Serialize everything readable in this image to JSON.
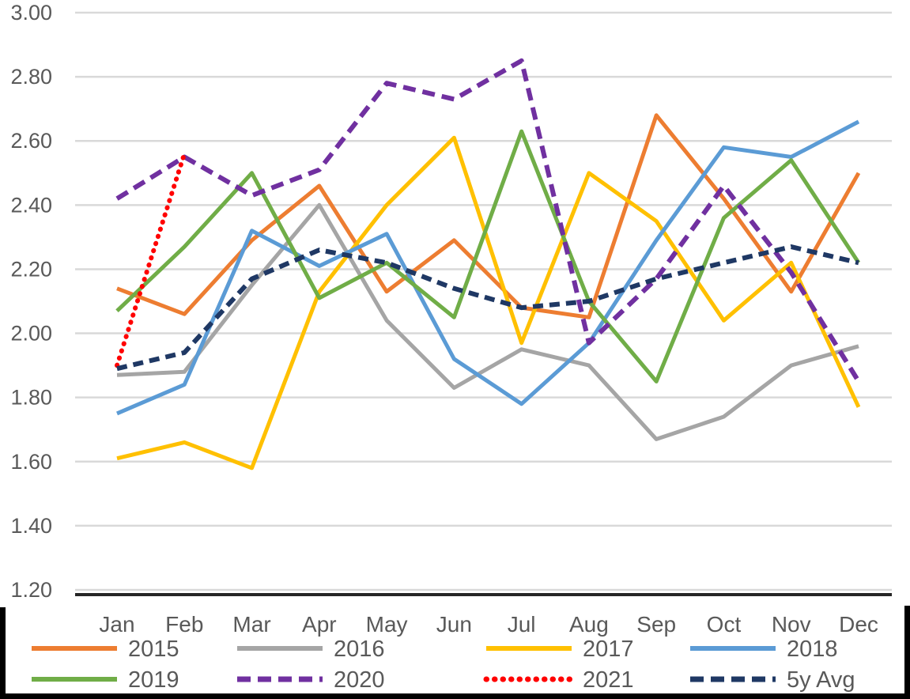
{
  "chart_data": {
    "type": "line",
    "title": "",
    "xlabel": "",
    "ylabel": "",
    "categories": [
      "Jan",
      "Feb",
      "Mar",
      "Apr",
      "May",
      "Jun",
      "Jul",
      "Aug",
      "Sep",
      "Oct",
      "Nov",
      "Dec"
    ],
    "y_ticks": [
      "3.00",
      "2.80",
      "2.60",
      "2.40",
      "2.20",
      "2.00",
      "1.80",
      "1.60",
      "1.40",
      "1.20"
    ],
    "ylim": [
      1.2,
      3.0
    ],
    "grid": "horizontal",
    "legend_position": "bottom",
    "series": [
      {
        "name": "2015",
        "color": "#ED7D31",
        "style": "solid",
        "values": [
          2.14,
          2.06,
          2.29,
          2.46,
          2.13,
          2.29,
          2.08,
          2.05,
          2.68,
          2.42,
          2.13,
          2.5
        ]
      },
      {
        "name": "2016",
        "color": "#A5A5A5",
        "style": "solid",
        "values": [
          1.87,
          1.88,
          2.15,
          2.4,
          2.04,
          1.83,
          1.95,
          1.9,
          1.67,
          1.74,
          1.9,
          1.96
        ]
      },
      {
        "name": "2017",
        "color": "#FFC000",
        "style": "solid",
        "values": [
          1.61,
          1.66,
          1.58,
          2.13,
          2.4,
          2.61,
          1.97,
          2.5,
          2.35,
          2.04,
          2.22,
          1.77
        ]
      },
      {
        "name": "2018",
        "color": "#5B9BD5",
        "style": "solid",
        "values": [
          1.75,
          1.84,
          2.32,
          2.21,
          2.31,
          1.92,
          1.78,
          1.97,
          2.29,
          2.58,
          2.55,
          2.66
        ]
      },
      {
        "name": "2019",
        "color": "#70AD47",
        "style": "solid",
        "values": [
          2.07,
          2.27,
          2.5,
          2.11,
          2.22,
          2.05,
          2.63,
          2.1,
          1.85,
          2.36,
          2.54,
          2.22
        ]
      },
      {
        "name": "2020",
        "color": "#7030A0",
        "style": "dashed",
        "values": [
          2.42,
          2.55,
          2.43,
          2.51,
          2.78,
          2.73,
          2.85,
          1.97,
          2.17,
          2.46,
          2.19,
          1.85
        ]
      },
      {
        "name": "2021",
        "color": "#FF0000",
        "style": "dotted",
        "values": [
          1.9,
          2.56,
          null,
          null,
          null,
          null,
          null,
          null,
          null,
          null,
          null,
          null
        ]
      },
      {
        "name": "5y Avg",
        "color": "#1F3864",
        "style": "dashed",
        "values": [
          1.89,
          1.94,
          2.17,
          2.26,
          2.22,
          2.14,
          2.08,
          2.1,
          2.17,
          2.22,
          2.27,
          2.22
        ]
      }
    ],
    "legend_rows": [
      [
        "2015",
        "2016",
        "2017",
        "2018"
      ],
      [
        "2019",
        "2020",
        "2021",
        "5y Avg"
      ]
    ],
    "colors": {
      "gridline": "#D9D9D9",
      "axis_line": "#262626",
      "tick_text": "#595959",
      "background": "#FFFFFF",
      "page_edge": "#000000"
    }
  }
}
